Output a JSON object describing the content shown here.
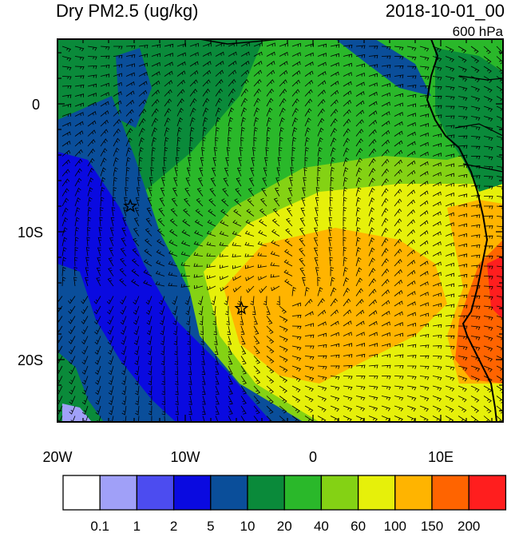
{
  "title_left": "Dry PM2.5 (ug/kg)",
  "title_right": "2018-10-01_00",
  "level_label": "600 hPa",
  "lat_ticks": [
    "0",
    "10S",
    "20S"
  ],
  "lon_ticks": [
    "20W",
    "10W",
    "0",
    "10E"
  ],
  "colorbar": {
    "labels": [
      "0.1",
      "1",
      "2",
      "5",
      "10",
      "20",
      "40",
      "60",
      "100",
      "150",
      "200"
    ],
    "colors": [
      "#ffffff",
      "#a0a0f8",
      "#4c4cf0",
      "#0a0ae0",
      "#0a4e9a",
      "#0a8a3a",
      "#2ab82a",
      "#84d214",
      "#e6f00a",
      "#ffb400",
      "#ff6400",
      "#ff1e1e"
    ]
  },
  "markers": [
    {
      "name": "star-marker-west",
      "lon": -14.3,
      "lat": -8.0
    },
    {
      "name": "star-marker-south",
      "lon": -5.6,
      "lat": -16.0
    }
  ]
}
